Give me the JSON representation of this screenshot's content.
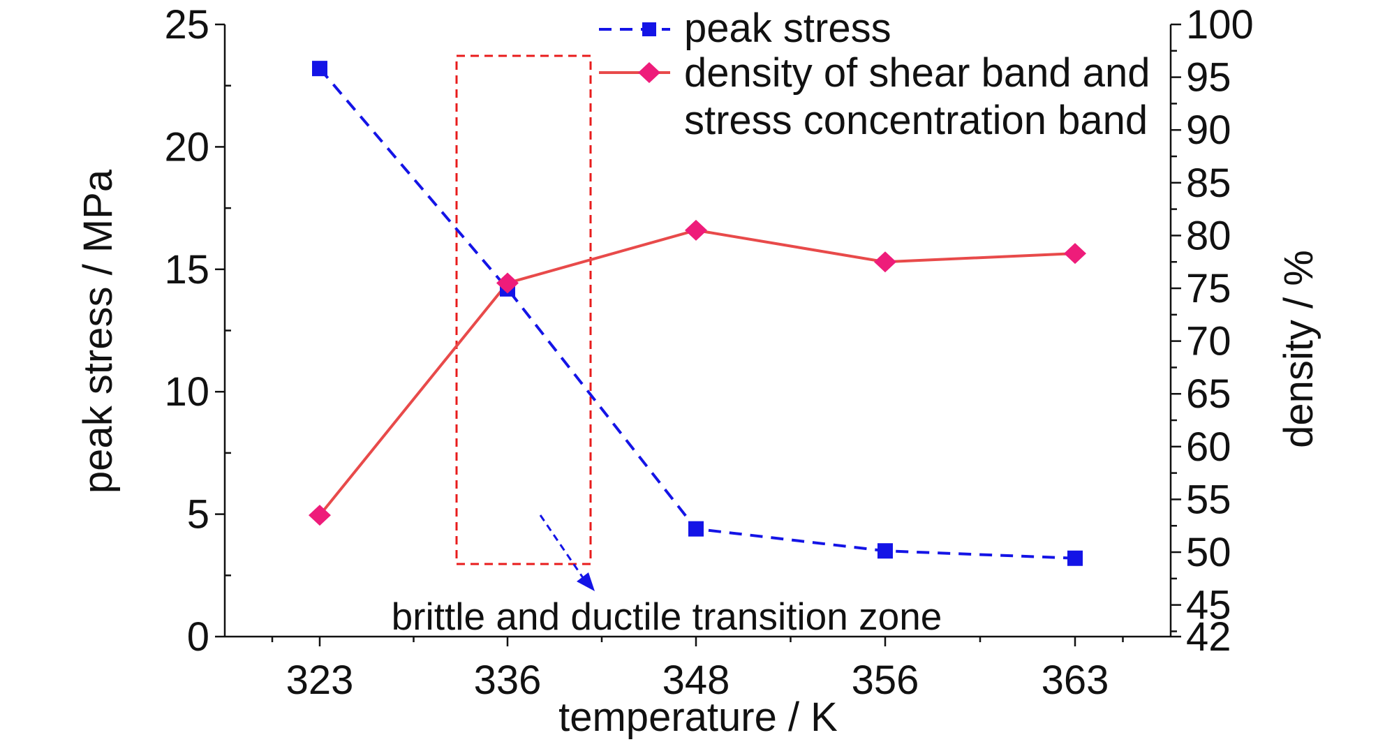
{
  "chart_data": {
    "type": "line",
    "title": "",
    "categories": [
      "323",
      "336",
      "348",
      "356",
      "363"
    ],
    "xlabel": "temperature / K",
    "ylabel_left": "peak stress / MPa",
    "ylabel_right": "density / %",
    "y_left": {
      "lim": [
        0,
        25
      ],
      "ticks": [
        "0",
        "5",
        "10",
        "15",
        "20",
        "25"
      ]
    },
    "y_right": {
      "lim": [
        42,
        100
      ],
      "ticks": [
        "42",
        "45",
        "50",
        "55",
        "60",
        "65",
        "70",
        "75",
        "80",
        "85",
        "90",
        "95",
        "100"
      ]
    },
    "series": [
      {
        "name": "peak stress",
        "axis": "left",
        "marker": "square",
        "line": "dashed",
        "color": "#1414e6",
        "values": [
          23.2,
          14.2,
          4.4,
          3.5,
          3.2
        ]
      },
      {
        "name": "density of shear band and stress concentration band",
        "axis": "right",
        "marker": "diamond",
        "line": "solid",
        "color": "#e84a4a",
        "marker_color": "#ee1c7a",
        "values": [
          53.5,
          75.5,
          80.5,
          77.5,
          78.3
        ]
      }
    ],
    "legend": {
      "position": "top-right",
      "entries": [
        {
          "lines": [
            "peak stress"
          ]
        },
        {
          "lines": [
            "density of shear band and",
            "stress concentration band"
          ]
        }
      ]
    },
    "annotation": {
      "text": "brittle and ductile transition zone",
      "box_style": "dashed",
      "box_color": "#e81c1c",
      "arrow_color": "#1414e6"
    },
    "grid": false
  }
}
